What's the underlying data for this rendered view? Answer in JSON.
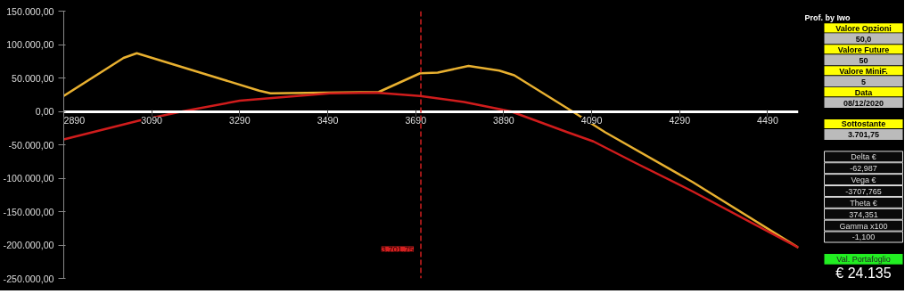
{
  "chart_data": [
    {
      "type": "line",
      "xlim": [
        2890,
        4560
      ],
      "ylim": [
        -250000,
        150000
      ],
      "xticks": [
        2890,
        3090,
        3290,
        3490,
        3690,
        3890,
        4090,
        4290,
        4490
      ],
      "yticks": [
        {
          "value": 150000,
          "label": "150.000,00"
        },
        {
          "value": 100000,
          "label": "100.000,00"
        },
        {
          "value": 50000,
          "label": "50.000,00"
        },
        {
          "value": 0,
          "label": "0,00"
        },
        {
          "value": -50000,
          "label": "-50.000,00"
        },
        {
          "value": -100000,
          "label": "-100.000,00"
        },
        {
          "value": -150000,
          "label": "-150.000,00"
        },
        {
          "value": -200000,
          "label": "-200.000,00"
        },
        {
          "value": -250000,
          "label": "-250.000,00"
        }
      ],
      "series": [
        {
          "color": "#e8b030",
          "x": [
            2890,
            3026,
            3056,
            3334,
            3360,
            3606,
            3700,
            3740,
            3810,
            3880,
            3914,
            4046,
            4120,
            4320,
            4560
          ],
          "values": [
            23000,
            80000,
            87000,
            31000,
            27000,
            29000,
            57000,
            58000,
            68000,
            61000,
            54000,
            0,
            -31000,
            -106000,
            -204000
          ]
        },
        {
          "color": "#d01c1c",
          "x": [
            2890,
            3060,
            3160,
            3290,
            3494,
            3600,
            3700,
            3800,
            3906,
            4034,
            4094,
            4186,
            4320,
            4560
          ],
          "values": [
            -42000,
            -14000,
            0,
            16000,
            27000,
            28000,
            23000,
            14000,
            0,
            -31000,
            -45000,
            -76000,
            -120000,
            -204000
          ]
        }
      ],
      "ref_lines": [
        {
          "axis": "x",
          "value": 3701.75,
          "label": "3.701,75",
          "color": "#d42020",
          "line_style": "dashed"
        }
      ],
      "grid": false,
      "marker": "none",
      "line_style": "solid"
    },
    {
      "type": "other",
      "annotations": [
        "Prof. by Iwo",
        "Valore Opzioni",
        "50,0",
        "Valore Future",
        "50",
        "Valore MiniF.",
        "5",
        "Data",
        "08/12/2020",
        "Sottostante",
        "3.701,75",
        "Delta €",
        "-62,987",
        "Vega €",
        "-3707,765",
        "Theta €",
        "374,351",
        "Gamma x100",
        "-1,100",
        "Val. Portafoglio",
        "€ 24.135"
      ]
    }
  ]
}
